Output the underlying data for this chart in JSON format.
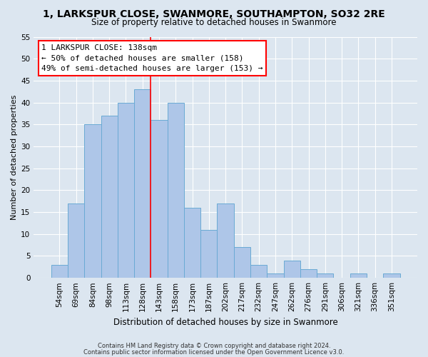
{
  "title": "1, LARKSPUR CLOSE, SWANMORE, SOUTHAMPTON, SO32 2RE",
  "subtitle": "Size of property relative to detached houses in Swanmore",
  "xlabel": "Distribution of detached houses by size in Swanmore",
  "ylabel": "Number of detached properties",
  "bin_labels": [
    "54sqm",
    "69sqm",
    "84sqm",
    "98sqm",
    "113sqm",
    "128sqm",
    "143sqm",
    "158sqm",
    "173sqm",
    "187sqm",
    "202sqm",
    "217sqm",
    "232sqm",
    "247sqm",
    "262sqm",
    "276sqm",
    "291sqm",
    "306sqm",
    "321sqm",
    "336sqm",
    "351sqm"
  ],
  "bar_values": [
    3,
    17,
    35,
    37,
    40,
    43,
    36,
    40,
    16,
    11,
    17,
    7,
    3,
    1,
    4,
    2,
    1,
    0,
    1,
    0,
    1
  ],
  "bar_color": "#aec6e8",
  "bar_edge_color": "#6aaad4",
  "reference_line_x": 5.5,
  "reference_line_label": "1 LARKSPUR CLOSE: 138sqm",
  "annotation_line1": "← 50% of detached houses are smaller (158)",
  "annotation_line2": "49% of semi-detached houses are larger (153) →",
  "ylim": [
    0,
    55
  ],
  "yticks": [
    0,
    5,
    10,
    15,
    20,
    25,
    30,
    35,
    40,
    45,
    50,
    55
  ],
  "footer_line1": "Contains HM Land Registry data © Crown copyright and database right 2024.",
  "footer_line2": "Contains public sector information licensed under the Open Government Licence v3.0.",
  "bg_color": "#dce6f0",
  "plot_bg_color": "#dce6f0",
  "title_fontsize": 10,
  "subtitle_fontsize": 8.5,
  "xlabel_fontsize": 8.5,
  "ylabel_fontsize": 8,
  "tick_fontsize": 7.5,
  "annot_fontsize": 8,
  "footer_fontsize": 6
}
